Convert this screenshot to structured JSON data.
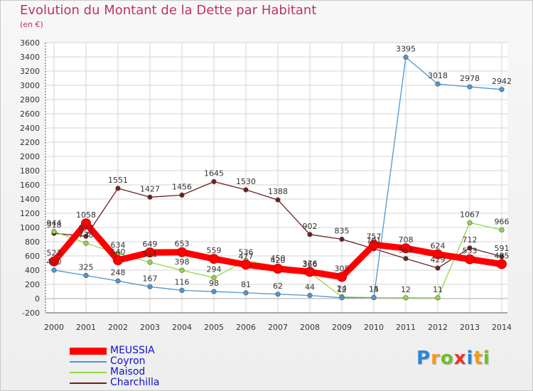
{
  "title": "Evolution du Montant de la Dette par Habitant",
  "subtitle": "(en €)",
  "logo_text": "Proxiti",
  "chart_data": {
    "type": "line",
    "title": "Evolution du Montant de la Dette par Habitant",
    "subtitle": "(en €)",
    "x": [
      "2000",
      "2001",
      "2002",
      "2003",
      "2004",
      "2005",
      "2006",
      "2007",
      "2008",
      "2009",
      "2010",
      "2011",
      "2012",
      "2013",
      "2014"
    ],
    "ylim": [
      -200,
      3600
    ],
    "yticks": [
      -200,
      0,
      200,
      400,
      600,
      800,
      1000,
      1200,
      1400,
      1600,
      1800,
      2000,
      2200,
      2400,
      2600,
      2800,
      3000,
      3200,
      3400,
      3600
    ],
    "grid": true,
    "legend_position": "bottom-left",
    "series": [
      {
        "name": "MEUSSIA",
        "color": "#ff0000",
        "values": [
          523,
          1058,
          540,
          649,
          653,
          559,
          477,
          420,
          376,
          305,
          757,
          708,
          624,
          553,
          485
        ]
      },
      {
        "name": "Coyron",
        "color": "#4f97d0",
        "values": [
          400,
          325,
          248,
          167,
          116,
          98,
          81,
          62,
          44,
          12,
          15,
          3395,
          3018,
          2978,
          2942
        ]
      },
      {
        "name": "Maisod",
        "color": "#8fd848",
        "values": [
          944,
          778,
          634,
          511,
          398,
          294,
          536,
          450,
          366,
          24,
          14,
          12,
          11,
          1067,
          966
        ]
      },
      {
        "name": "Charchilla",
        "color": "#6e1f20",
        "values": [
          918,
          877,
          1551,
          1427,
          1456,
          1645,
          1530,
          1388,
          902,
          835,
          701,
          563,
          429,
          712,
          591
        ]
      }
    ]
  }
}
